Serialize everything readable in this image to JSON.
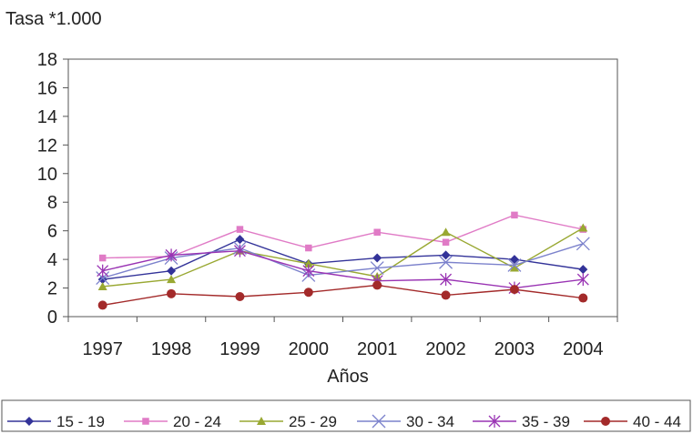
{
  "chart_data": {
    "type": "line",
    "ytitle": "Tasa *1.000",
    "xlabel": "Años",
    "categories": [
      "1997",
      "1998",
      "1999",
      "2000",
      "2001",
      "2002",
      "2003",
      "2004"
    ],
    "ylim": [
      0,
      18
    ],
    "yticks": [
      0,
      2,
      4,
      6,
      8,
      10,
      12,
      14,
      16,
      18
    ],
    "grid": false,
    "legend_position": "bottom",
    "series": [
      {
        "name": "15 - 19",
        "color": "#333399",
        "marker": "diamond",
        "values": [
          2.6,
          3.2,
          5.4,
          3.7,
          4.1,
          4.3,
          4.0,
          3.3
        ]
      },
      {
        "name": "20 - 24",
        "color": "#E07BC6",
        "marker": "square",
        "values": [
          4.1,
          4.2,
          6.1,
          4.8,
          5.9,
          5.2,
          7.1,
          6.1
        ]
      },
      {
        "name": "25 - 29",
        "color": "#99A832",
        "marker": "triangle",
        "values": [
          2.1,
          2.6,
          4.6,
          3.7,
          2.8,
          5.9,
          3.4,
          6.2
        ]
      },
      {
        "name": "30 - 34",
        "color": "#7C82CC",
        "marker": "x",
        "values": [
          2.7,
          4.1,
          4.8,
          2.9,
          3.4,
          3.8,
          3.6,
          5.1
        ]
      },
      {
        "name": "35 - 39",
        "color": "#9933B3",
        "marker": "asterisk",
        "values": [
          3.2,
          4.3,
          4.6,
          3.2,
          2.5,
          2.6,
          2.0,
          2.6
        ]
      },
      {
        "name": "40 - 44",
        "color": "#A32A2A",
        "marker": "circle",
        "values": [
          0.8,
          1.6,
          1.4,
          1.7,
          2.2,
          1.5,
          1.9,
          1.3
        ]
      }
    ]
  }
}
